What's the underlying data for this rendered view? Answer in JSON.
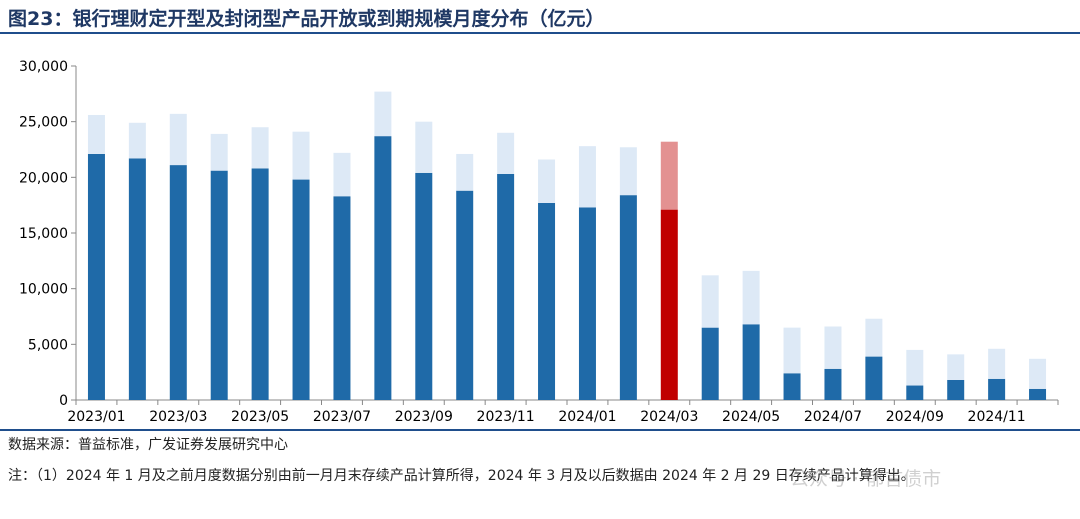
{
  "title": "图23：银行理财定开型及封闭型产品开放或到期规模月度分布（亿元）",
  "source": "数据来源：普益标准，广发证券发展研究中心",
  "note": "注：（1）2024 年 1 月及之前月度数据分别由前一月月末存续产品计算所得，2024 年 3 月及以后数据由 2024 年 2 月 29 日存续产品计算得出。",
  "watermark": "公众号 · 郁言债市",
  "colors": {
    "dark_blue": "#1f6aa8",
    "light_blue": "#dde9f6",
    "dark_red": "#c00000",
    "light_red": "#e39191",
    "axis": "#888888"
  },
  "chart_data": {
    "type": "bar",
    "stacked": true,
    "categories": [
      "2023/01",
      "2023/02",
      "2023/03",
      "2023/04",
      "2023/05",
      "2023/06",
      "2023/07",
      "2023/08",
      "2023/09",
      "2023/10",
      "2023/11",
      "2023/12",
      "2024/01",
      "2024/02",
      "2024/03",
      "2024/04",
      "2024/05",
      "2024/06",
      "2024/07",
      "2024/08",
      "2024/09",
      "2024/10",
      "2024/11",
      "2024/12"
    ],
    "tick_labels": [
      "2023/01",
      "2023/03",
      "2023/05",
      "2023/07",
      "2023/09",
      "2023/11",
      "2024/01",
      "2024/03",
      "2024/05",
      "2024/07",
      "2024/09",
      "2024/11"
    ],
    "series": [
      {
        "values": [
          22100,
          21700,
          21100,
          20600,
          20800,
          19800,
          18300,
          23700,
          20400,
          18800,
          20300,
          17700,
          17300,
          18400,
          17100,
          6500,
          6800,
          2400,
          2800,
          3900,
          1300,
          1800,
          1900,
          1000
        ]
      },
      {
        "values": [
          3500,
          3200,
          4600,
          3300,
          3700,
          4300,
          3900,
          4000,
          4600,
          3300,
          3700,
          3900,
          5500,
          4300,
          6100,
          4700,
          4800,
          4100,
          3800,
          3400,
          3200,
          2300,
          2700,
          2700
        ]
      }
    ],
    "highlight_category": "2024/03",
    "ylim": [
      0,
      30000
    ],
    "yticks": [
      "0",
      "5,000",
      "10,000",
      "15,000",
      "20,000",
      "25,000",
      "30,000"
    ],
    "ytick_values": [
      0,
      5000,
      10000,
      15000,
      20000,
      25000,
      30000
    ],
    "grid": false,
    "legend": "none"
  }
}
